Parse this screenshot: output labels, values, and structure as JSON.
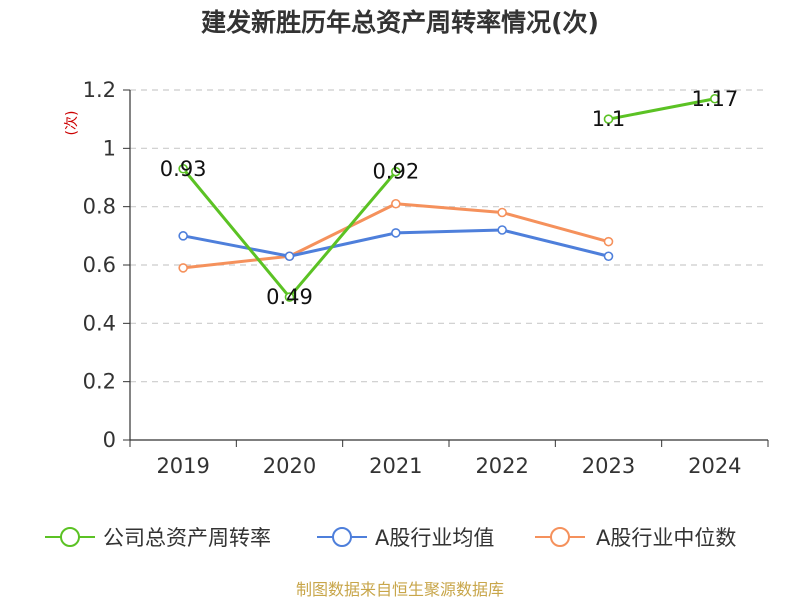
{
  "chart_data": {
    "type": "line",
    "title": "建发新胜历年总资产周转率情况(次)",
    "ylabel": "(次)",
    "xlabel": "",
    "categories": [
      "2019",
      "2020",
      "2021",
      "2022",
      "2023",
      "2024"
    ],
    "ylim": [
      0,
      1.2
    ],
    "yticks": [
      0,
      0.2,
      0.4,
      0.6,
      0.8,
      1,
      1.2
    ],
    "grid": true,
    "legend_position": "bottom",
    "series": [
      {
        "name": "公司总资产周转率",
        "color": "#5bc224",
        "values": [
          0.93,
          0.49,
          0.92,
          null,
          1.1,
          1.17
        ],
        "labels": [
          "0.93",
          "0.49",
          "0.92",
          null,
          "1.1",
          "1.17"
        ]
      },
      {
        "name": "A股行业均值",
        "color": "#4e7fdb",
        "values": [
          0.7,
          0.63,
          0.71,
          0.72,
          0.63,
          null
        ]
      },
      {
        "name": "A股行业中位数",
        "color": "#f5915c",
        "values": [
          0.59,
          0.63,
          0.81,
          0.78,
          0.68,
          null
        ]
      }
    ],
    "source": "制图数据来自恒生聚源数据库"
  }
}
